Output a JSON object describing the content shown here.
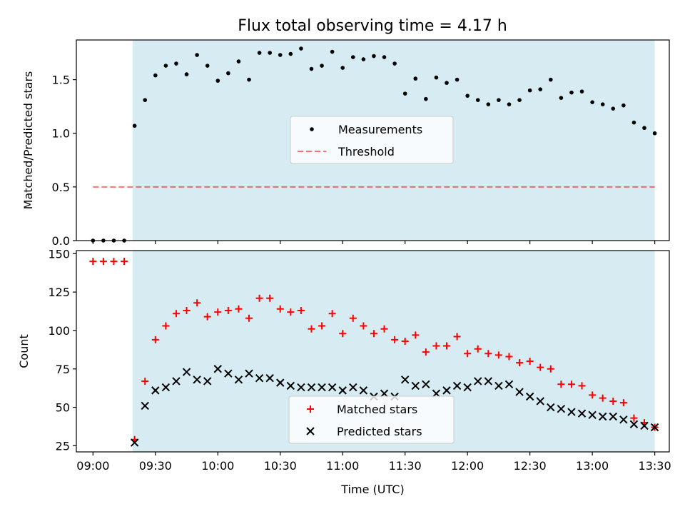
{
  "title": "Flux total observing time = 4.17 h",
  "colors": {
    "shade": "#add8e6",
    "measurement": "#000000",
    "threshold": "#ff0000",
    "matched": "#ff0000",
    "predicted": "#000000"
  },
  "chart_data": [
    {
      "type": "scatter",
      "ylabel": "Matched/Predicted stars",
      "ylim": [
        0,
        1.87
      ],
      "yticks": [
        0.0,
        0.5,
        1.0,
        1.5
      ],
      "ytick_labels": [
        "0.0",
        "0.5",
        "1.0",
        "1.5"
      ],
      "xlim": [
        "08:52",
        "13:37"
      ],
      "grid": false,
      "shaded_interval": [
        "09:19",
        "13:30"
      ],
      "legend": {
        "placement": "center",
        "entries": [
          "Measurements",
          "Threshold"
        ]
      },
      "threshold": {
        "name": "Threshold",
        "value": 0.5,
        "x": [
          "09:00",
          "13:30"
        ]
      },
      "series": [
        {
          "name": "Measurements",
          "marker": "dot",
          "points": [
            [
              "09:00",
              0.0
            ],
            [
              "09:05",
              0.0
            ],
            [
              "09:10",
              0.0
            ],
            [
              "09:15",
              0.0
            ],
            [
              "09:20",
              1.07
            ],
            [
              "09:25",
              1.31
            ],
            [
              "09:30",
              1.54
            ],
            [
              "09:35",
              1.63
            ],
            [
              "09:40",
              1.65
            ],
            [
              "09:45",
              1.55
            ],
            [
              "09:50",
              1.73
            ],
            [
              "09:55",
              1.63
            ],
            [
              "10:00",
              1.49
            ],
            [
              "10:05",
              1.56
            ],
            [
              "10:10",
              1.67
            ],
            [
              "10:15",
              1.5
            ],
            [
              "10:20",
              1.75
            ],
            [
              "10:25",
              1.75
            ],
            [
              "10:30",
              1.73
            ],
            [
              "10:35",
              1.74
            ],
            [
              "10:40",
              1.79
            ],
            [
              "10:45",
              1.6
            ],
            [
              "10:50",
              1.63
            ],
            [
              "10:55",
              1.76
            ],
            [
              "11:00",
              1.61
            ],
            [
              "11:05",
              1.71
            ],
            [
              "11:10",
              1.69
            ],
            [
              "11:15",
              1.72
            ],
            [
              "11:20",
              1.71
            ],
            [
              "11:25",
              1.65
            ],
            [
              "11:30",
              1.37
            ],
            [
              "11:35",
              1.51
            ],
            [
              "11:40",
              1.32
            ],
            [
              "11:45",
              1.52
            ],
            [
              "11:50",
              1.47
            ],
            [
              "11:55",
              1.5
            ],
            [
              "12:00",
              1.35
            ],
            [
              "12:05",
              1.31
            ],
            [
              "12:10",
              1.27
            ],
            [
              "12:15",
              1.31
            ],
            [
              "12:20",
              1.27
            ],
            [
              "12:25",
              1.31
            ],
            [
              "12:30",
              1.4
            ],
            [
              "12:35",
              1.41
            ],
            [
              "12:40",
              1.5
            ],
            [
              "12:45",
              1.33
            ],
            [
              "12:50",
              1.38
            ],
            [
              "12:55",
              1.39
            ],
            [
              "13:00",
              1.29
            ],
            [
              "13:05",
              1.27
            ],
            [
              "13:10",
              1.23
            ],
            [
              "13:15",
              1.26
            ],
            [
              "13:20",
              1.1
            ],
            [
              "13:25",
              1.05
            ],
            [
              "13:30",
              1.0
            ]
          ]
        }
      ]
    },
    {
      "type": "scatter",
      "ylabel": "Count",
      "xlabel": "Time (UTC)",
      "ylim": [
        21,
        152
      ],
      "yticks": [
        25,
        50,
        75,
        100,
        125,
        150
      ],
      "ytick_labels": [
        "25",
        "50",
        "75",
        "100",
        "125",
        "150"
      ],
      "xlim": [
        "08:52",
        "13:37"
      ],
      "xticks": [
        "09:00",
        "09:30",
        "10:00",
        "10:30",
        "11:00",
        "11:30",
        "12:00",
        "12:30",
        "13:00",
        "13:30"
      ],
      "xtick_labels": [
        "09:00",
        "09:30",
        "10:00",
        "10:30",
        "11:00",
        "11:30",
        "12:00",
        "12:30",
        "13:00",
        "13:30"
      ],
      "grid": false,
      "shaded_interval": [
        "09:19",
        "13:30"
      ],
      "legend": {
        "placement": "lower center",
        "entries": [
          "Matched stars",
          "Predicted stars"
        ]
      },
      "series": [
        {
          "name": "Matched stars",
          "marker": "plus",
          "points": [
            [
              "09:00",
              145
            ],
            [
              "09:05",
              145
            ],
            [
              "09:10",
              145
            ],
            [
              "09:15",
              145
            ],
            [
              "09:20",
              29
            ],
            [
              "09:25",
              67
            ],
            [
              "09:30",
              94
            ],
            [
              "09:35",
              103
            ],
            [
              "09:40",
              111
            ],
            [
              "09:45",
              113
            ],
            [
              "09:50",
              118
            ],
            [
              "09:55",
              109
            ],
            [
              "10:00",
              112
            ],
            [
              "10:05",
              113
            ],
            [
              "10:10",
              114
            ],
            [
              "10:15",
              108
            ],
            [
              "10:20",
              121
            ],
            [
              "10:25",
              121
            ],
            [
              "10:30",
              114
            ],
            [
              "10:35",
              112
            ],
            [
              "10:40",
              113
            ],
            [
              "10:45",
              101
            ],
            [
              "10:50",
              103
            ],
            [
              "10:55",
              111
            ],
            [
              "11:00",
              98
            ],
            [
              "11:05",
              108
            ],
            [
              "11:10",
              103
            ],
            [
              "11:15",
              98
            ],
            [
              "11:20",
              101
            ],
            [
              "11:25",
              94
            ],
            [
              "11:30",
              93
            ],
            [
              "11:35",
              97
            ],
            [
              "11:40",
              86
            ],
            [
              "11:45",
              90
            ],
            [
              "11:50",
              90
            ],
            [
              "11:55",
              96
            ],
            [
              "12:00",
              85
            ],
            [
              "12:05",
              88
            ],
            [
              "12:10",
              85
            ],
            [
              "12:15",
              84
            ],
            [
              "12:20",
              83
            ],
            [
              "12:25",
              79
            ],
            [
              "12:30",
              80
            ],
            [
              "12:35",
              76
            ],
            [
              "12:40",
              75
            ],
            [
              "12:45",
              65
            ],
            [
              "12:50",
              65
            ],
            [
              "12:55",
              64
            ],
            [
              "13:00",
              58
            ],
            [
              "13:05",
              56
            ],
            [
              "13:10",
              54
            ],
            [
              "13:15",
              53
            ],
            [
              "13:20",
              43
            ],
            [
              "13:25",
              40
            ],
            [
              "13:30",
              37
            ]
          ]
        },
        {
          "name": "Predicted stars",
          "marker": "x",
          "points": [
            [
              "09:20",
              27
            ],
            [
              "09:25",
              51
            ],
            [
              "09:30",
              61
            ],
            [
              "09:35",
              63
            ],
            [
              "09:40",
              67
            ],
            [
              "09:45",
              73
            ],
            [
              "09:50",
              68
            ],
            [
              "09:55",
              67
            ],
            [
              "10:00",
              75
            ],
            [
              "10:05",
              72
            ],
            [
              "10:10",
              68
            ],
            [
              "10:15",
              72
            ],
            [
              "10:20",
              69
            ],
            [
              "10:25",
              69
            ],
            [
              "10:30",
              66
            ],
            [
              "10:35",
              64
            ],
            [
              "10:40",
              63
            ],
            [
              "10:45",
              63
            ],
            [
              "10:50",
              63
            ],
            [
              "10:55",
              63
            ],
            [
              "11:00",
              61
            ],
            [
              "11:05",
              63
            ],
            [
              "11:10",
              61
            ],
            [
              "11:15",
              57
            ],
            [
              "11:20",
              59
            ],
            [
              "11:25",
              57
            ],
            [
              "11:30",
              68
            ],
            [
              "11:35",
              64
            ],
            [
              "11:40",
              65
            ],
            [
              "11:45",
              59
            ],
            [
              "11:50",
              61
            ],
            [
              "11:55",
              64
            ],
            [
              "12:00",
              63
            ],
            [
              "12:05",
              67
            ],
            [
              "12:10",
              67
            ],
            [
              "12:15",
              64
            ],
            [
              "12:20",
              65
            ],
            [
              "12:25",
              60
            ],
            [
              "12:30",
              57
            ],
            [
              "12:35",
              54
            ],
            [
              "12:40",
              50
            ],
            [
              "12:45",
              49
            ],
            [
              "12:50",
              47
            ],
            [
              "12:55",
              46
            ],
            [
              "13:00",
              45
            ],
            [
              "13:05",
              44
            ],
            [
              "13:10",
              44
            ],
            [
              "13:15",
              42
            ],
            [
              "13:20",
              39
            ],
            [
              "13:25",
              38
            ],
            [
              "13:30",
              37
            ]
          ]
        }
      ]
    }
  ]
}
